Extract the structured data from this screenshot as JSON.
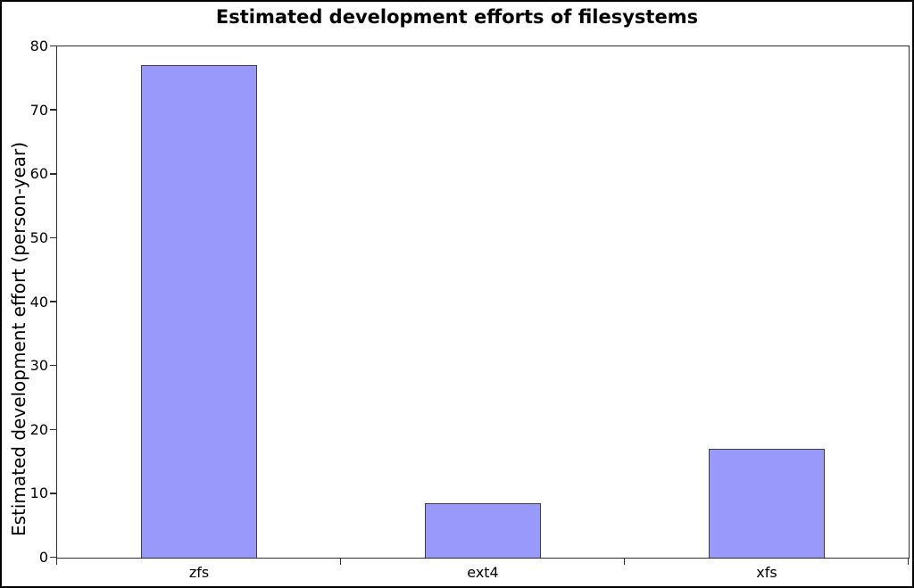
{
  "page": {
    "background": "#ffffff",
    "border_color": "#000000"
  },
  "chart_data": {
    "type": "bar",
    "title": "Estimated development efforts of filesystems",
    "xlabel": "",
    "ylabel": "Estimated development effort (person-year)",
    "categories": [
      "zfs",
      "ext4",
      "xfs"
    ],
    "values": [
      77,
      8.5,
      17
    ],
    "ylim": [
      0,
      80
    ],
    "yticks": [
      0,
      10,
      20,
      30,
      40,
      50,
      60,
      70,
      80
    ],
    "grid": false,
    "legend": false,
    "bar_fill": "#9999fc",
    "bar_border": "#3f3f3f",
    "axis_color": "#2e2e2e",
    "text_color": "#000000"
  }
}
